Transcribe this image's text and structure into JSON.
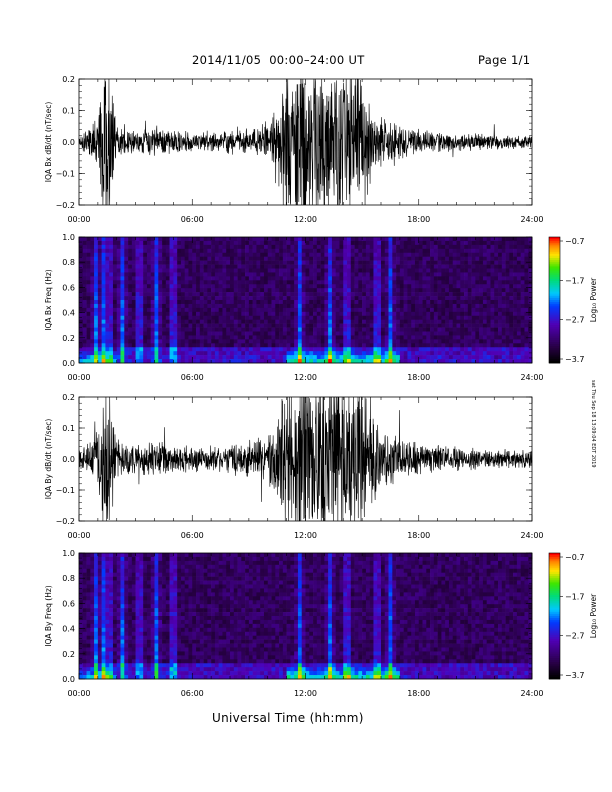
{
  "header": {
    "title": "2014/11/05  00:00–24:00 UT",
    "page": "Page 1/1"
  },
  "footer": {
    "xlabel": "Universal Time (hh:mm)",
    "stamp": "sat Thu Sep 18 13:09:04 EDT 2019"
  },
  "chart_data": [
    {
      "type": "line",
      "ylabel": "IQA Bx dB/dt (nT/sec)",
      "x_ticks": [
        "00:00",
        "06:00",
        "12:00",
        "18:00",
        "24:00"
      ],
      "y_ticks": [
        "0.2",
        "0.1",
        "0.0",
        "−0.1",
        "−0.2"
      ],
      "xlim": [
        0,
        24
      ],
      "ylim": [
        -0.2,
        0.2
      ],
      "activity_envelope": {
        "hours": [
          0,
          0.5,
          1.0,
          1.3,
          1.6,
          2.0,
          2.5,
          3.0,
          4.0,
          5.0,
          6.0,
          7.0,
          8.0,
          9.0,
          10.0,
          10.7,
          11.0,
          12.0,
          13.0,
          14.0,
          15.0,
          15.5,
          16.0,
          17.0,
          18.0,
          20.0,
          22.0,
          24.0
        ],
        "amplitude": [
          0.02,
          0.05,
          0.09,
          0.3,
          0.3,
          0.05,
          0.04,
          0.04,
          0.05,
          0.04,
          0.03,
          0.03,
          0.04,
          0.045,
          0.06,
          0.12,
          0.3,
          0.3,
          0.3,
          0.25,
          0.25,
          0.12,
          0.08,
          0.06,
          0.04,
          0.03,
          0.025,
          0.02
        ]
      }
    },
    {
      "type": "heatmap",
      "ylabel": "IQA Bx Freq (Hz)",
      "x_ticks": [
        "00:00",
        "06:00",
        "12:00",
        "18:00",
        "24:00"
      ],
      "y_ticks": [
        "1.0",
        "0.8",
        "0.6",
        "0.4",
        "0.2",
        "0.0"
      ],
      "xlim": [
        0,
        24
      ],
      "ylim": [
        0,
        1.0
      ],
      "colorbar": {
        "label": "Log₁₀ Power",
        "ticks": [
          "−0.7",
          "−1.7",
          "−2.7",
          "−3.7"
        ],
        "range": [
          -3.7,
          -0.7
        ]
      },
      "bright_columns_hours": [
        0.9,
        1.3,
        1.6,
        2.3,
        3.2,
        4.1,
        5.0,
        11.7,
        13.3,
        14.2,
        15.8,
        16.5
      ],
      "low_freq_band_hours": [
        11,
        17
      ]
    },
    {
      "type": "line",
      "ylabel": "IQA By dB/dt (nT/sec)",
      "x_ticks": [
        "00:00",
        "06:00",
        "12:00",
        "18:00",
        "24:00"
      ],
      "y_ticks": [
        "0.2",
        "0.1",
        "0.0",
        "−0.1",
        "−0.2"
      ],
      "xlim": [
        0,
        24
      ],
      "ylim": [
        -0.2,
        0.2
      ],
      "activity_envelope": {
        "hours": [
          0,
          0.5,
          1.0,
          1.3,
          1.6,
          2.0,
          2.5,
          3.0,
          4.0,
          5.0,
          6.0,
          7.0,
          8.0,
          9.0,
          10.0,
          10.7,
          11.0,
          12.0,
          13.0,
          14.0,
          15.0,
          15.5,
          16.0,
          17.0,
          18.0,
          20.0,
          22.0,
          24.0
        ],
        "amplitude": [
          0.03,
          0.06,
          0.1,
          0.3,
          0.3,
          0.06,
          0.05,
          0.05,
          0.06,
          0.05,
          0.04,
          0.04,
          0.05,
          0.06,
          0.07,
          0.2,
          0.3,
          0.3,
          0.3,
          0.26,
          0.26,
          0.15,
          0.1,
          0.07,
          0.05,
          0.04,
          0.03,
          0.03
        ]
      }
    },
    {
      "type": "heatmap",
      "ylabel": "IQA By Freq (Hz)",
      "x_ticks": [
        "00:00",
        "06:00",
        "12:00",
        "18:00",
        "24:00"
      ],
      "y_ticks": [
        "1.0",
        "0.8",
        "0.6",
        "0.4",
        "0.2",
        "0.0"
      ],
      "xlim": [
        0,
        24
      ],
      "ylim": [
        0,
        1.0
      ],
      "colorbar": {
        "label": "Log₁₀ Power",
        "ticks": [
          "−0.7",
          "−1.7",
          "−2.7",
          "−3.7"
        ],
        "range": [
          -3.7,
          -0.7
        ]
      },
      "bright_columns_hours": [
        0.9,
        1.3,
        1.6,
        2.3,
        3.2,
        4.1,
        5.0,
        11.7,
        13.3,
        14.2,
        15.8,
        16.5
      ],
      "low_freq_band_hours": [
        11,
        17
      ]
    }
  ]
}
